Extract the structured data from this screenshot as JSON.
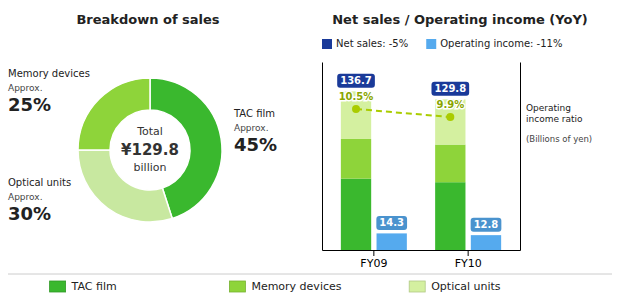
{
  "chart_data": [
    {
      "type": "pie",
      "title": "Breakdown of sales",
      "categories": [
        "TAC film",
        "Optical units",
        "Memory devices"
      ],
      "values": [
        45,
        30,
        25
      ],
      "value_labels": [
        "45%",
        "30%",
        "25%"
      ],
      "colors": [
        "#3ab82e",
        "#c8e8a0",
        "#8ed43a"
      ],
      "data_labels": true,
      "label_note": "Approx.",
      "annotations": [
        "Total",
        "¥129.8",
        "billion"
      ]
    },
    {
      "type": "bar",
      "title": "Net sales / Operating income (YoY)",
      "categories": [
        "FY09",
        "FY10"
      ],
      "stacked": true,
      "ylim": [
        0,
        162
      ],
      "yticks": [],
      "y2lim": [
        0,
        14
      ],
      "y2ticks": [],
      "tick_labels": "x",
      "grid": false,
      "legend": "bottom",
      "annotations": [
        "(Billions of yen)"
      ],
      "series": [
        {
          "name": "TAC film",
          "type": "bar",
          "color": "#3ab82e",
          "values": [
            61.515,
            58.41
          ]
        },
        {
          "name": "Memory devices",
          "type": "bar",
          "color": "#8ed43a",
          "values": [
            34.175,
            32.45
          ]
        },
        {
          "name": "Optical units",
          "type": "bar",
          "color": "#d4f0a0",
          "values": [
            41.01,
            38.94
          ]
        },
        {
          "name": "Net sales: -5%",
          "type": "total",
          "color": "#1a3a99",
          "values": [
            136.7,
            129.8
          ]
        },
        {
          "name": "Operating income: -11%",
          "type": "bar",
          "stacked": false,
          "color": "#55aaee",
          "values": [
            14.3,
            12.8
          ],
          "data_labels": true
        },
        {
          "name": "Operating income ratio",
          "type": "line",
          "axis": "y2",
          "color": "#aacc00",
          "marker": "circle",
          "line_style": "dashed",
          "values": [
            10.5,
            9.9
          ],
          "value_labels": [
            "10.5%",
            "9.9%"
          ],
          "data_labels": true
        }
      ]
    }
  ]
}
